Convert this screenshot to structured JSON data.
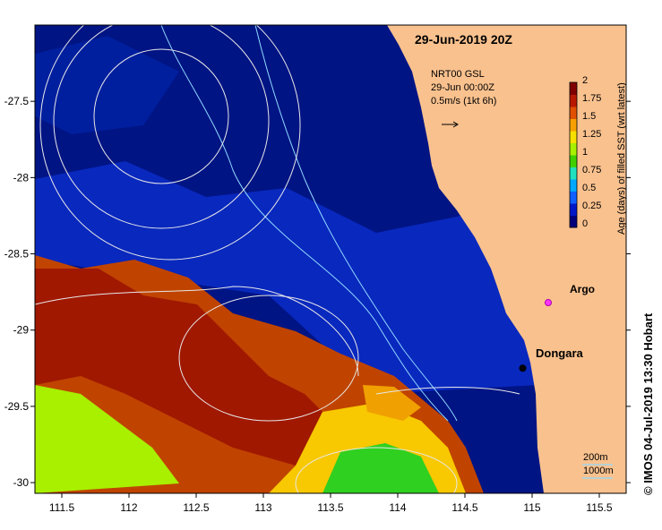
{
  "title": {
    "date": "29-Jun-2019 20Z"
  },
  "legend": {
    "line1": "NRT00 GSL",
    "line2": "29-Jun 00:00Z",
    "line3": "0.5m/s (1kt 6h)"
  },
  "colorbar": {
    "title": "Age (days) of filled SST (wrt latest)",
    "ticks": [
      "2",
      "1.75",
      "1.5",
      "1.25",
      "1",
      "0.75",
      "0.5",
      "0.25",
      "0"
    ],
    "colors": [
      "#00007a",
      "#0018c8",
      "#1060ff",
      "#00a8ff",
      "#20e0c0",
      "#40d000",
      "#a8f000",
      "#f8e000",
      "#f8a000",
      "#e05000",
      "#b81800",
      "#800000"
    ]
  },
  "axes": {
    "x_ticks": [
      "111.5",
      "112",
      "112.5",
      "113",
      "113.5",
      "114",
      "114.5",
      "115",
      "115.5"
    ],
    "y_ticks": [
      "-27.5",
      "-28",
      "-28.5",
      "-29",
      "-29.5",
      "-30"
    ],
    "xlim": [
      111.3,
      115.7
    ],
    "ylim": [
      -30.07,
      -27.0
    ]
  },
  "places": {
    "dongara": {
      "name": "Dongara",
      "lon": 114.93,
      "lat": -29.25
    },
    "argo": {
      "name": "Argo",
      "lon": 115.12,
      "lat": -28.82
    }
  },
  "scale": {
    "label_200": "200m",
    "label_1000": "1000m"
  },
  "credit": "© IMOS 04-Jul-2019 13:30 Hobart",
  "colors": {
    "land": "#f9c18e",
    "ocean": "#00107a",
    "contour": "#e8e8e8",
    "isobath": "#8fd9ff"
  }
}
